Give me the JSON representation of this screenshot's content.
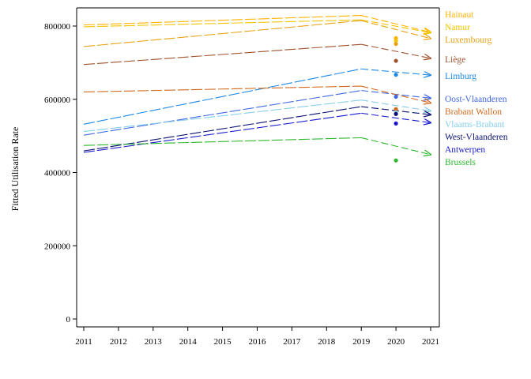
{
  "chart_data": {
    "type": "line",
    "title": "",
    "xlabel": "",
    "ylabel": "Fitted Utilisation Rate",
    "x": [
      2011,
      2012,
      2013,
      2014,
      2015,
      2016,
      2017,
      2018,
      2019,
      2020,
      2021
    ],
    "xlim": [
      2011,
      2021
    ],
    "ylim": [
      0,
      850000
    ],
    "yticks": [
      0,
      200000,
      400000,
      600000,
      800000
    ],
    "ytick_labels": [
      "0",
      "200000",
      "400000",
      "600000",
      "800000"
    ],
    "xtick_labels": [
      "2011",
      "2012",
      "2013",
      "2014",
      "2015",
      "2016",
      "2017",
      "2018",
      "2019",
      "2020",
      "2021"
    ],
    "grid": false,
    "legend": "direct labels at right",
    "series": [
      {
        "name": "Hainaut",
        "color": "#FFB300",
        "x": [
          2011,
          2019,
          2021
        ],
        "y": [
          803000,
          829000,
          783000
        ],
        "point_2020": 767000
      },
      {
        "name": "Namur",
        "color": "#F2C400",
        "x": [
          2011,
          2019,
          2021
        ],
        "y": [
          798000,
          817000,
          782000
        ],
        "point_2020": 760000
      },
      {
        "name": "Luxembourg",
        "color": "#E8A317",
        "x": [
          2011,
          2019,
          2021
        ],
        "y": [
          744000,
          815000,
          766000
        ],
        "point_2020": 751000
      },
      {
        "name": "Liège",
        "color": "#A0522D",
        "x": [
          2011,
          2019,
          2021
        ],
        "y": [
          695000,
          750000,
          712000
        ],
        "point_2020": 705000
      },
      {
        "name": "Limburg",
        "color": "#1E88E5",
        "x": [
          2011,
          2019,
          2021
        ],
        "y": [
          532000,
          683000,
          666000
        ],
        "point_2020": 667000
      },
      {
        "name": "Oost-Vlaanderen",
        "color": "#4169E1",
        "x": [
          2011,
          2019,
          2021
        ],
        "y": [
          502000,
          624000,
          603000
        ],
        "point_2020": 607000
      },
      {
        "name": "Brabant Wallon",
        "color": "#D2691E",
        "x": [
          2011,
          2019,
          2021
        ],
        "y": [
          620000,
          636000,
          590000
        ],
        "point_2020": 573000
      },
      {
        "name": "Vlaams-Brabant",
        "color": "#87CEEB",
        "x": [
          2011,
          2019,
          2021
        ],
        "y": [
          512000,
          598000,
          568000
        ],
        "point_2020": 564000
      },
      {
        "name": "West-Vlaanderen",
        "color": "#0A1172",
        "x": [
          2011,
          2019,
          2021
        ],
        "y": [
          459000,
          580000,
          558000
        ],
        "point_2020": 560000
      },
      {
        "name": "Antwerpen",
        "color": "#1A1ACD",
        "x": [
          2011,
          2019,
          2021
        ],
        "y": [
          455000,
          562000,
          536000
        ],
        "point_2020": 534000
      },
      {
        "name": "Brussels",
        "color": "#2DB82D",
        "x": [
          2011,
          2019,
          2021
        ],
        "y": [
          474000,
          495000,
          449000
        ],
        "point_2020": 433000
      }
    ]
  }
}
